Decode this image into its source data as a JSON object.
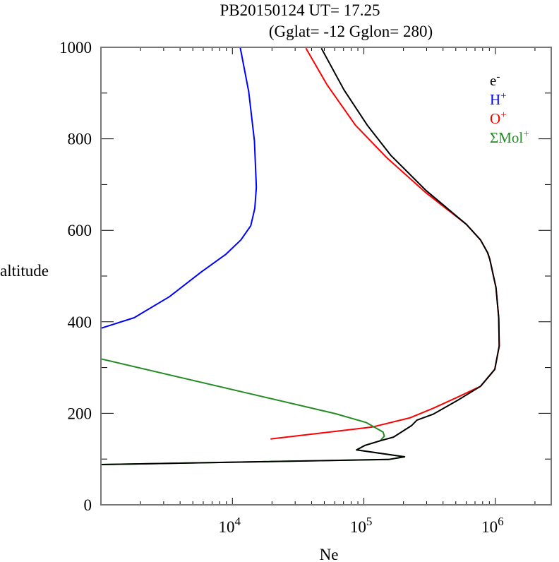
{
  "chart_data": {
    "type": "line",
    "title_lines": [
      "PB20150124   UT=  17.25",
      "(Gglat= -12   Gglon=  280)"
    ],
    "xlabel": "Ne",
    "ylabel": "altitude",
    "xscale": "log",
    "xlim": [
      1000,
      2660000
    ],
    "ylim": [
      0,
      1000
    ],
    "x_major_ticks": [
      10000,
      100000,
      1000000
    ],
    "x_tick_labels": [
      {
        "base": "10",
        "exp": "4"
      },
      {
        "base": "10",
        "exp": "5"
      },
      {
        "base": "10",
        "exp": "6"
      }
    ],
    "y_ticks": [
      0,
      200,
      400,
      600,
      800,
      1000
    ],
    "y_tick_labels": [
      "0",
      "200",
      "400",
      "600",
      "800",
      "1000"
    ],
    "grid": false,
    "legend_placement": "top-right",
    "series": [
      {
        "name": "e-",
        "legend": {
          "base": "e",
          "sup": "-"
        },
        "color": "#000000",
        "points": [
          [
            47500,
            998
          ],
          [
            70600,
            907
          ],
          [
            106000,
            830
          ],
          [
            160000,
            764
          ],
          [
            297000,
            687
          ],
          [
            602000,
            613
          ],
          [
            771000,
            579
          ],
          [
            873000,
            551
          ],
          [
            906000,
            537
          ],
          [
            1010000,
            475
          ],
          [
            1060000,
            409
          ],
          [
            1070000,
            347
          ],
          [
            990000,
            296
          ],
          [
            771000,
            259
          ],
          [
            513000,
            228
          ],
          [
            336000,
            198
          ],
          [
            253000,
            185
          ],
          [
            230000,
            173
          ],
          [
            168000,
            148
          ],
          [
            133000,
            140
          ],
          [
            102000,
            130
          ],
          [
            88000,
            120
          ],
          [
            204000,
            105
          ],
          [
            154000,
            99
          ],
          [
            1000,
            88
          ]
        ]
      },
      {
        "name": "H+",
        "legend": {
          "base": "H",
          "sup": "+"
        },
        "color": "#0000ff",
        "points": [
          [
            11460,
            1000
          ],
          [
            13300,
            903
          ],
          [
            14700,
            795
          ],
          [
            15200,
            694
          ],
          [
            14800,
            648
          ],
          [
            13800,
            610
          ],
          [
            11600,
            579
          ],
          [
            8950,
            548
          ],
          [
            5800,
            509
          ],
          [
            3320,
            455
          ],
          [
            1790,
            409
          ],
          [
            1000,
            386
          ]
        ]
      },
      {
        "name": "O+",
        "legend": {
          "base": "O",
          "sup": "+"
        },
        "color": "#ff0000",
        "points": [
          [
            36200,
            998
          ],
          [
            52500,
            918
          ],
          [
            86100,
            830
          ],
          [
            149000,
            759
          ],
          [
            297000,
            682
          ],
          [
            602000,
            613
          ],
          [
            771000,
            579
          ],
          [
            873000,
            551
          ],
          [
            906000,
            537
          ],
          [
            1010000,
            475
          ],
          [
            1060000,
            409
          ],
          [
            1070000,
            347
          ],
          [
            990000,
            296
          ],
          [
            771000,
            259
          ],
          [
            513000,
            235
          ],
          [
            336000,
            211
          ],
          [
            223000,
            190
          ],
          [
            116000,
            170
          ],
          [
            19500,
            144
          ]
        ]
      },
      {
        "name": "ΣMol+",
        "legend": {
          "base": "ΣMol",
          "sup": "+"
        },
        "color": "#228b22",
        "points": [
          [
            1000,
            319
          ],
          [
            61000,
            199
          ],
          [
            104000,
            180
          ],
          [
            140000,
            159
          ],
          [
            143000,
            150
          ],
          [
            133000,
            140
          ],
          [
            102000,
            130
          ],
          [
            88000,
            120
          ],
          [
            204000,
            105
          ],
          [
            154000,
            99
          ],
          [
            1000,
            88
          ]
        ]
      }
    ]
  }
}
